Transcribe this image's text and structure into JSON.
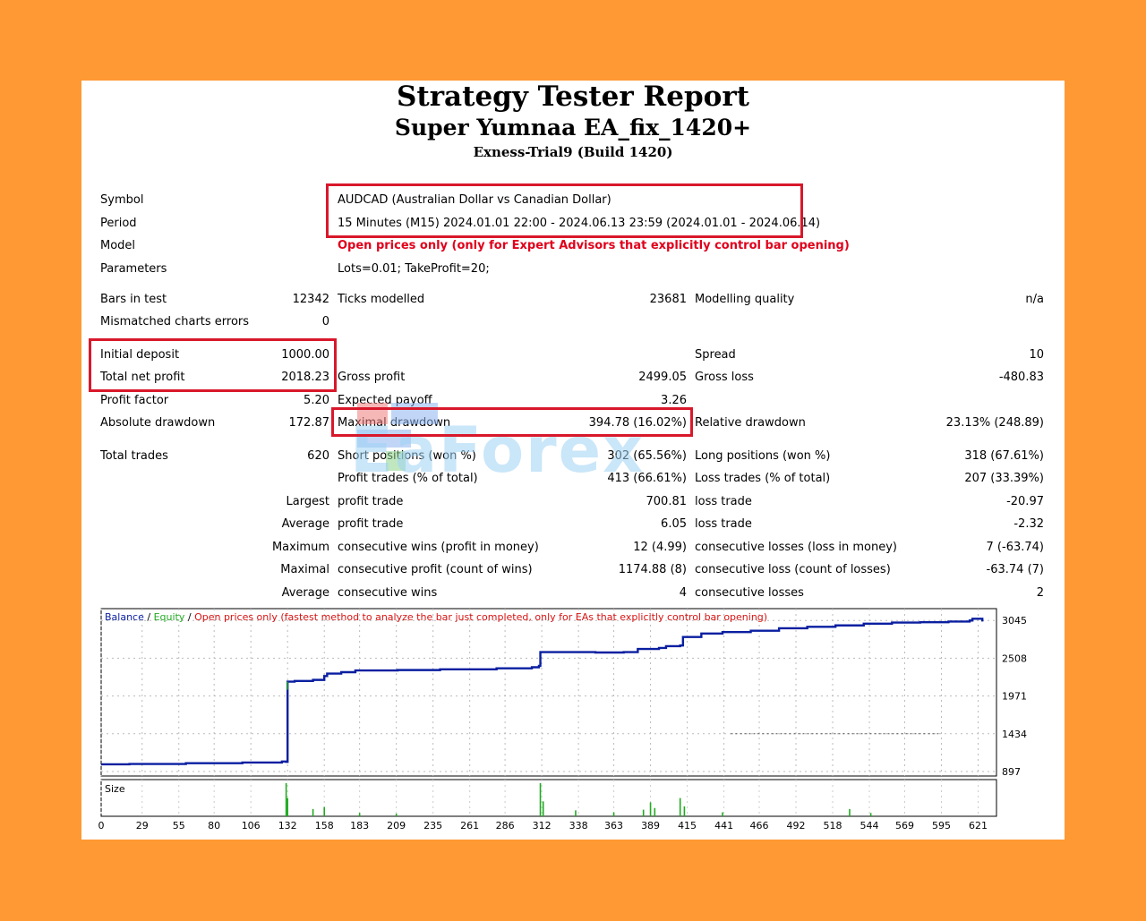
{
  "header": {
    "title": "Strategy Tester Report",
    "subtitle": "Super Yumnaa EA_fix_1420+",
    "server": "Exness-Trial9 (Build 1420)"
  },
  "settings": {
    "symbol_label": "Symbol",
    "symbol_value": "AUDCAD (Australian Dollar vs Canadian Dollar)",
    "period_label": "Period",
    "period_value": "15 Minutes (M15) 2024.01.01 22:00 - 2024.06.13 23:59 (2024.01.01 - 2024.06.14)",
    "model_label": "Model",
    "model_value": "Open prices only (only for Expert Advisors that explicitly control bar opening)",
    "parameters_label": "Parameters",
    "parameters_value": "Lots=0.01; TakeProfit=20;"
  },
  "stats": {
    "bars_label": "Bars in test",
    "bars_value": "12342",
    "ticks_label": "Ticks modelled",
    "ticks_value": "23681",
    "quality_label": "Modelling quality",
    "quality_value": "n/a",
    "mismatched_label": "Mismatched charts errors",
    "mismatched_value": "0",
    "initial_deposit_label": "Initial deposit",
    "initial_deposit_value": "1000.00",
    "spread_label": "Spread",
    "spread_value": "10",
    "net_profit_label": "Total net profit",
    "net_profit_value": "2018.23",
    "gross_profit_label": "Gross profit",
    "gross_profit_value": "2499.05",
    "gross_loss_label": "Gross loss",
    "gross_loss_value": "-480.83",
    "profit_factor_label": "Profit factor",
    "profit_factor_value": "5.20",
    "expected_payoff_label": "Expected payoff",
    "expected_payoff_value": "3.26",
    "abs_drawdown_label": "Absolute drawdown",
    "abs_drawdown_value": "172.87",
    "max_drawdown_label": "Maximal drawdown",
    "max_drawdown_value": "394.78 (16.02%)",
    "rel_drawdown_label": "Relative drawdown",
    "rel_drawdown_value": "23.13% (248.89)",
    "total_trades_label": "Total trades",
    "total_trades_value": "620",
    "short_label": "Short positions (won %)",
    "short_value": "302 (65.56%)",
    "long_label": "Long positions (won %)",
    "long_value": "318 (67.61%)",
    "profit_trades_label": "Profit trades (% of total)",
    "profit_trades_value": "413 (66.61%)",
    "loss_trades_label": "Loss trades (% of total)",
    "loss_trades_value": "207 (33.39%)",
    "largest_label": "Largest",
    "largest_profit_label": "profit trade",
    "largest_profit_value": "700.81",
    "largest_loss_label": "loss trade",
    "largest_loss_value": "-20.97",
    "average_label": "Average",
    "average_profit_label": "profit trade",
    "average_profit_value": "6.05",
    "average_loss_label": "loss trade",
    "average_loss_value": "-2.32",
    "maximum_label": "Maximum",
    "max_cons_wins_label": "consecutive wins (profit in money)",
    "max_cons_wins_value": "12 (4.99)",
    "max_cons_losses_label": "consecutive losses (loss in money)",
    "max_cons_losses_value": "7 (-63.74)",
    "maximal_label": "Maximal",
    "maximal_cons_profit_label": "consecutive profit (count of wins)",
    "maximal_cons_profit_value": "1174.88 (8)",
    "maximal_cons_loss_label": "consecutive loss (count of losses)",
    "maximal_cons_loss_value": "-63.74 (7)",
    "avg_cons_label": "Average",
    "avg_cons_wins_label": "consecutive wins",
    "avg_cons_wins_value": "4",
    "avg_cons_losses_label": "consecutive losses",
    "avg_cons_losses_value": "2"
  },
  "watermark": "EaForex",
  "colors": {
    "balance": "#0a1fa0",
    "equity": "#22aa22",
    "legend_red": "#d81414",
    "highlight_box": "#d9182b",
    "background": "#ff9933"
  },
  "chart_data": {
    "type": "line",
    "legend": [
      "Balance",
      "Equity",
      "Open prices only (fastest method to analyze the bar just completed, only for EAs that explicitly control bar opening)"
    ],
    "size_label": "Size",
    "xlim": [
      0,
      634
    ],
    "ylim": [
      897,
      3150
    ],
    "y_ticks": [
      3045,
      2508,
      1971,
      1434,
      897
    ],
    "x_ticks": [
      0,
      29,
      55,
      80,
      106,
      132,
      158,
      183,
      209,
      235,
      261,
      286,
      312,
      338,
      363,
      389,
      415,
      441,
      466,
      492,
      518,
      544,
      569,
      595,
      621
    ],
    "series": [
      {
        "name": "Balance",
        "x": [
          0,
          20,
          60,
          100,
          128,
          131,
          132,
          137,
          150,
          158,
          160,
          170,
          180,
          210,
          240,
          280,
          305,
          310,
          311,
          320,
          350,
          370,
          380,
          395,
          400,
          410,
          412,
          425,
          440,
          460,
          480,
          500,
          520,
          540,
          560,
          580,
          600,
          615,
          617,
          624
        ],
        "y": [
          1000,
          1005,
          1015,
          1025,
          1040,
          1035,
          2175,
          2185,
          2200,
          2255,
          2290,
          2310,
          2335,
          2340,
          2350,
          2365,
          2380,
          2400,
          2595,
          2595,
          2590,
          2595,
          2640,
          2655,
          2680,
          2690,
          2810,
          2860,
          2880,
          2900,
          2935,
          2955,
          2975,
          3000,
          3015,
          3020,
          3030,
          3045,
          3070,
          3030
        ]
      }
    ],
    "equity_dips": {
      "x": [
        446,
        593
      ],
      "y": [
        1434,
        1434
      ]
    },
    "size_spikes": [
      {
        "x": 131,
        "size": 1.0
      },
      {
        "x": 132,
        "size": 0.55
      },
      {
        "x": 150,
        "size": 0.22
      },
      {
        "x": 158,
        "size": 0.28
      },
      {
        "x": 183,
        "size": 0.1
      },
      {
        "x": 209,
        "size": 0.08
      },
      {
        "x": 311,
        "size": 1.0
      },
      {
        "x": 313,
        "size": 0.45
      },
      {
        "x": 336,
        "size": 0.18
      },
      {
        "x": 363,
        "size": 0.12
      },
      {
        "x": 384,
        "size": 0.2
      },
      {
        "x": 389,
        "size": 0.42
      },
      {
        "x": 392,
        "size": 0.25
      },
      {
        "x": 410,
        "size": 0.55
      },
      {
        "x": 413,
        "size": 0.3
      },
      {
        "x": 440,
        "size": 0.12
      },
      {
        "x": 530,
        "size": 0.22
      },
      {
        "x": 545,
        "size": 0.1
      }
    ]
  }
}
